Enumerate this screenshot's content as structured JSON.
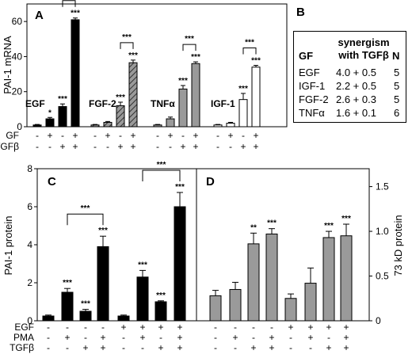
{
  "chart_data": [
    {
      "panel": "A",
      "type": "bar",
      "ylabel": "PAI-1 mRNA",
      "ylim": [
        0,
        70
      ],
      "yticks": [
        "0",
        "20",
        "40",
        "60"
      ],
      "row_labels": [
        "GF",
        "TGFβ"
      ],
      "groups": [
        {
          "label": "EGF",
          "fill": "black",
          "signs": [
            [
              "-",
              "+",
              "-",
              "+"
            ],
            [
              "-",
              "-",
              "+",
              "+"
            ]
          ],
          "values": [
            1.0,
            4.5,
            11.5,
            61.0
          ],
          "errors": [
            0.3,
            0.8,
            1.5,
            1.0
          ],
          "stars": [
            "",
            "*",
            "***",
            "***"
          ]
        },
        {
          "label": "FGF-2",
          "fill": "hatched",
          "signs": [
            [
              "-",
              "+",
              "-",
              "+"
            ],
            [
              "-",
              "-",
              "+",
              "+"
            ]
          ],
          "values": [
            1.0,
            2.5,
            12.0,
            36.5
          ],
          "errors": [
            0.3,
            0.5,
            2.0,
            1.5
          ],
          "stars": [
            "",
            "",
            "***",
            "***"
          ]
        },
        {
          "label": "TNFα",
          "fill": "gray",
          "signs": [
            [
              "-",
              "+",
              "-",
              "+"
            ],
            [
              "-",
              "-",
              "+",
              "+"
            ]
          ],
          "values": [
            1.0,
            4.5,
            21.5,
            36.0
          ],
          "errors": [
            0.3,
            1.0,
            2.0,
            1.0
          ],
          "stars": [
            "",
            "",
            "***",
            "***"
          ]
        },
        {
          "label": "IGF-1",
          "fill": "white",
          "signs": [
            [
              "-",
              "+",
              "-",
              "+"
            ],
            [
              "-",
              "-",
              "+",
              "+"
            ]
          ],
          "values": [
            1.0,
            2.0,
            15.5,
            34.0
          ],
          "errors": [
            0.3,
            0.5,
            3.5,
            1.0
          ],
          "stars": [
            "",
            "",
            "***",
            "***"
          ]
        }
      ],
      "brackets": [
        {
          "group": 0,
          "from": 2,
          "to": 3,
          "label": "***"
        },
        {
          "group": 1,
          "from": 2,
          "to": 3,
          "label": "***"
        },
        {
          "group": 2,
          "from": 2,
          "to": 3,
          "label": "***"
        },
        {
          "group": 3,
          "from": 2,
          "to": 3,
          "label": "***"
        }
      ]
    },
    {
      "panel": "B",
      "type": "table",
      "columns": [
        "GF",
        "synergism with TGFβ",
        "N"
      ],
      "rows": [
        [
          "EGF",
          "4.0 + 0.5",
          "5"
        ],
        [
          "IGF-1",
          "2.2 + 0.5",
          "5"
        ],
        [
          "FGF-2",
          "2.6 + 0.3",
          "5"
        ],
        [
          "TNFα",
          "1.6 + 0.1",
          "6"
        ]
      ]
    },
    {
      "panel": "C",
      "type": "bar",
      "ylabel": "PAI-1 protein",
      "ylim": [
        0,
        8
      ],
      "yticks": [
        "0",
        "2",
        "4",
        "6",
        "8"
      ],
      "fill": "black",
      "values": [
        0.25,
        1.5,
        0.5,
        3.9,
        0.25,
        2.3,
        1.0,
        6.0
      ],
      "errors": [
        0.05,
        0.2,
        0.1,
        0.55,
        0.05,
        0.35,
        0.05,
        0.75
      ],
      "stars": [
        "",
        "***",
        "***",
        "***",
        "",
        "***",
        "***",
        "***"
      ],
      "brackets": [
        {
          "from": 1,
          "to": 3,
          "label": "***"
        },
        {
          "from": 5,
          "to": 7,
          "label": "***"
        }
      ]
    },
    {
      "panel": "D",
      "type": "bar",
      "ylabel": "73 kD protein",
      "ylim": [
        0,
        1.7
      ],
      "yticks": [
        "0",
        "0.5",
        "1.0",
        "1.5"
      ],
      "fill": "gray",
      "values": [
        0.28,
        0.35,
        0.86,
        0.97,
        0.25,
        0.42,
        0.93,
        0.95
      ],
      "errors": [
        0.06,
        0.08,
        0.12,
        0.06,
        0.05,
        0.17,
        0.07,
        0.13
      ],
      "stars": [
        "",
        "",
        "**",
        "***",
        "",
        "",
        "***",
        "***"
      ]
    }
  ],
  "bottom_conditions": {
    "row_labels": [
      "EGF",
      "PMA",
      "TGFβ"
    ],
    "signs": [
      [
        "-",
        "-",
        "-",
        "-",
        "+",
        "+",
        "+",
        "+"
      ],
      [
        "-",
        "+",
        "-",
        "+",
        "-",
        "+",
        "-",
        "+"
      ],
      [
        "-",
        "-",
        "+",
        "+",
        "-",
        "-",
        "+",
        "+"
      ]
    ]
  }
}
